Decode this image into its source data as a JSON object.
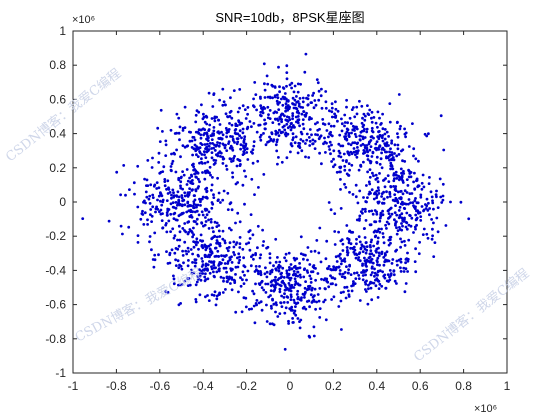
{
  "chart_data": {
    "type": "scatter",
    "title": "SNR=10db，8PSK星座图",
    "xlabel": "",
    "ylabel": "",
    "xlim": [
      -1,
      1
    ],
    "ylim": [
      -1,
      1
    ],
    "x_ticks": [
      "-1",
      "-0.8",
      "-0.6",
      "-0.4",
      "-0.2",
      "0",
      "0.2",
      "0.4",
      "0.6",
      "0.8",
      "1"
    ],
    "y_ticks": [
      "1",
      "0.8",
      "0.6",
      "0.4",
      "0.2",
      "0",
      "-0.2",
      "-0.4",
      "-0.6",
      "-0.8",
      "-1"
    ],
    "x_exponent": "×10⁶",
    "y_exponent": "×10⁶",
    "grid": false,
    "marker_color": "#0000CC",
    "constellation": {
      "scheme": "8PSK",
      "snr_db": 10,
      "ideal_points": [
        {
          "x": 0.5,
          "y": 0.0
        },
        {
          "x": 0.35,
          "y": 0.35
        },
        {
          "x": 0.0,
          "y": 0.5
        },
        {
          "x": -0.35,
          "y": 0.35
        },
        {
          "x": -0.5,
          "y": 0.0
        },
        {
          "x": -0.35,
          "y": -0.35
        },
        {
          "x": 0.0,
          "y": -0.5
        },
        {
          "x": 0.35,
          "y": -0.35
        }
      ],
      "sample_count": 2400
    }
  },
  "watermarks": {
    "text_left": "CSDN博客：我爱C编程",
    "text_right": "CSDN博客：我爱C编程",
    "text_bottom_left": "CSDN博客：我爱C编程"
  }
}
